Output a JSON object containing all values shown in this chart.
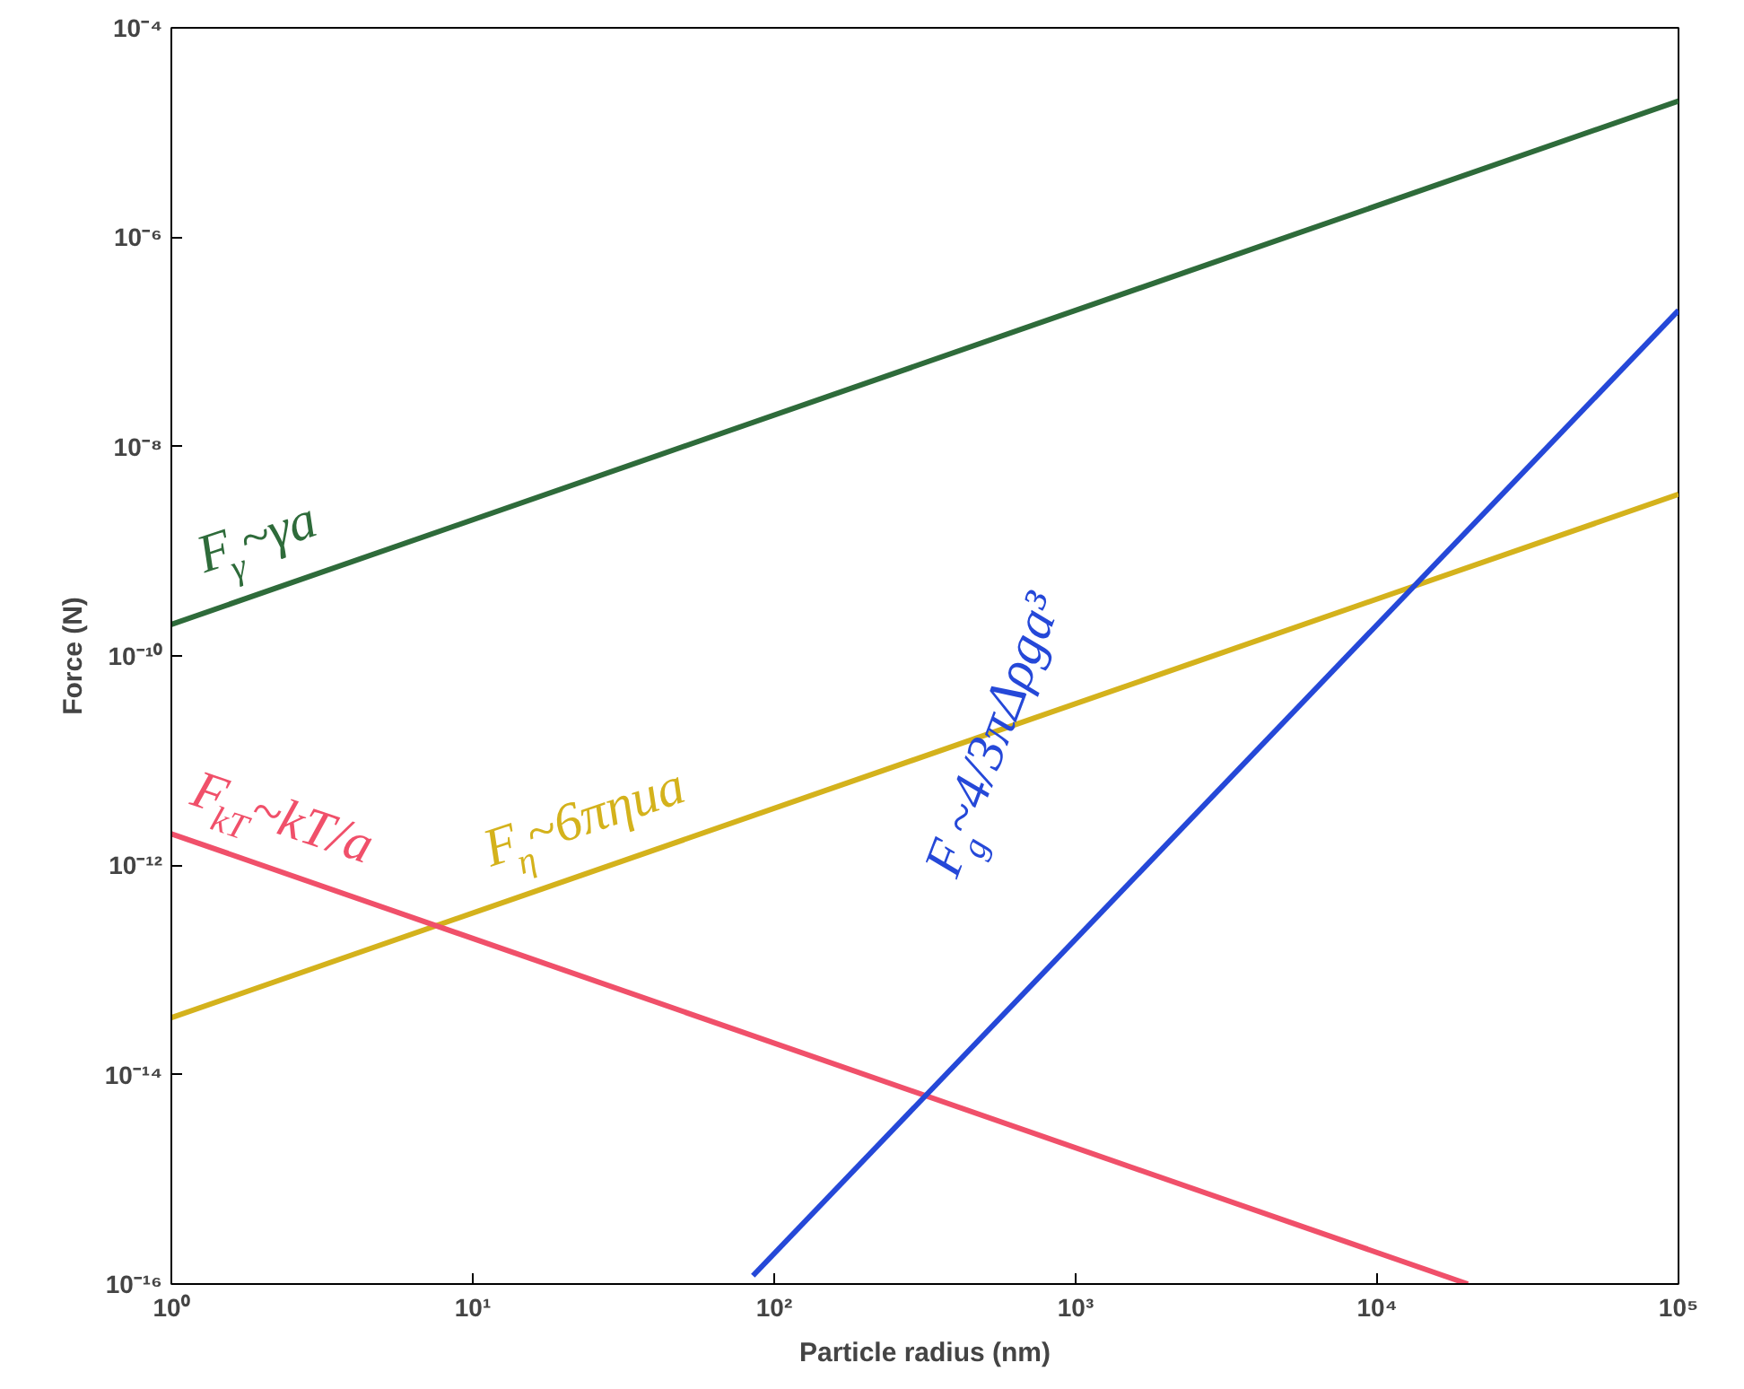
{
  "chart_data": {
    "type": "line",
    "xlabel": "Particle radius (nm)",
    "ylabel": "Force (N)",
    "log": "xy",
    "grid": false,
    "xlim": [
      1,
      100000
    ],
    "ylim": [
      1e-16,
      0.0001
    ],
    "xticks": [
      {
        "value": 1,
        "label": "10⁰"
      },
      {
        "value": 10,
        "label": "10¹"
      },
      {
        "value": 100,
        "label": "10²"
      },
      {
        "value": 1000,
        "label": "10³"
      },
      {
        "value": 10000,
        "label": "10⁴"
      },
      {
        "value": 100000,
        "label": "10⁵"
      }
    ],
    "yticks": [
      {
        "value": 1e-16,
        "label": "10⁻¹⁶"
      },
      {
        "value": 1e-14,
        "label": "10⁻¹⁴"
      },
      {
        "value": 1e-12,
        "label": "10⁻¹²"
      },
      {
        "value": 1e-10,
        "label": "10⁻¹⁰"
      },
      {
        "value": 1e-08,
        "label": "10⁻⁸"
      },
      {
        "value": 1e-06,
        "label": "10⁻⁶"
      },
      {
        "value": 0.0001,
        "label": "10⁻⁴"
      }
    ],
    "series": [
      {
        "name": "F$_{γ}$~γa",
        "color": "#2e6b3a",
        "x": [
          1,
          100000
        ],
        "values": [
          2e-10,
          2e-05
        ]
      },
      {
        "name": "F$_{η}$~6πηua",
        "color": "#d4b21c",
        "x": [
          1,
          100000
        ],
        "values": [
          3.5e-14,
          3.5e-09
        ]
      },
      {
        "name": "F$_{kT}$~kT/a",
        "color": "#f0506a",
        "x": [
          1,
          20000
        ],
        "values": [
          2e-12,
          1e-16
        ]
      },
      {
        "name": "F$_{g}$~4/3πΔρga³",
        "color": "#2548d8",
        "x": [
          85,
          100000
        ],
        "values": [
          1.2e-16,
          2e-07
        ]
      }
    ]
  }
}
